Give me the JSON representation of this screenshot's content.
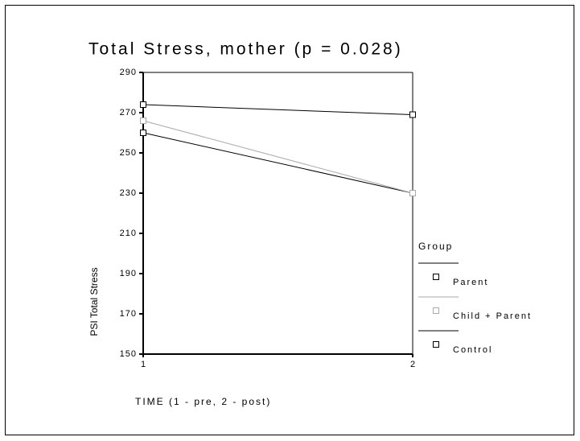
{
  "chart_data": {
    "type": "line",
    "title": "Total Stress, mother (p = 0.028)",
    "x_label": "TIME (1 - pre, 2 - post)",
    "y_label": "PSI Total Stress",
    "x": [
      1,
      2
    ],
    "xlim": [
      1,
      2
    ],
    "xticks": [
      1,
      2
    ],
    "ylim": [
      150,
      290
    ],
    "yticks": [
      150,
      170,
      190,
      210,
      230,
      250,
      270,
      290
    ],
    "legend_title": "Group",
    "series": [
      {
        "name": "Parent",
        "color": "#000000",
        "values": [
          260,
          230
        ]
      },
      {
        "name": "Child + Parent",
        "color": "#aaaaaa",
        "values": [
          266,
          230
        ]
      },
      {
        "name": "Control",
        "color": "#000000",
        "values": [
          274,
          269
        ]
      }
    ]
  }
}
